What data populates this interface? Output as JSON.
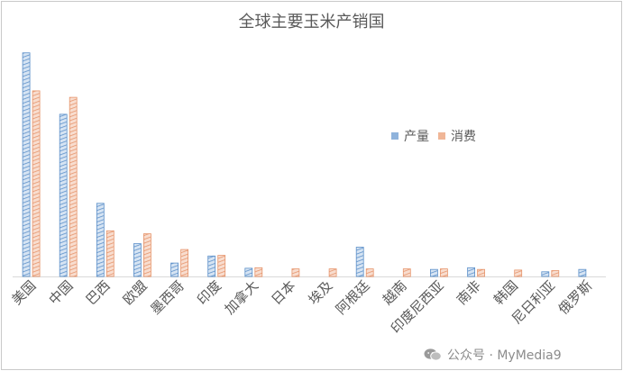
{
  "chart_data": {
    "type": "bar",
    "title": "全球主要玉米产销国",
    "categories": [
      "美国",
      "中国",
      "巴西",
      "欧盟",
      "墨西哥",
      "印度",
      "加拿大",
      "日本",
      "埃及",
      "阿根廷",
      "越南",
      "印度尼西亚",
      "南非",
      "韩国",
      "尼日利亚",
      "俄罗斯"
    ],
    "series": [
      {
        "name": "产量",
        "color": "#5b8fc9",
        "values": [
          382,
          277,
          125,
          56,
          23,
          35,
          14,
          0,
          0,
          50,
          0,
          12,
          15,
          0,
          8,
          12
        ]
      },
      {
        "name": "消费",
        "color": "#e6946b",
        "values": [
          317,
          306,
          78,
          73,
          46,
          36,
          15,
          13,
          13,
          13,
          13,
          13,
          12,
          11,
          10,
          0
        ]
      }
    ],
    "ylim": [
      0,
      400
    ],
    "grid": false,
    "legend_position": "right"
  },
  "watermark": {
    "icon": "wechat-icon",
    "text": "公众号 · MyMedia9"
  }
}
